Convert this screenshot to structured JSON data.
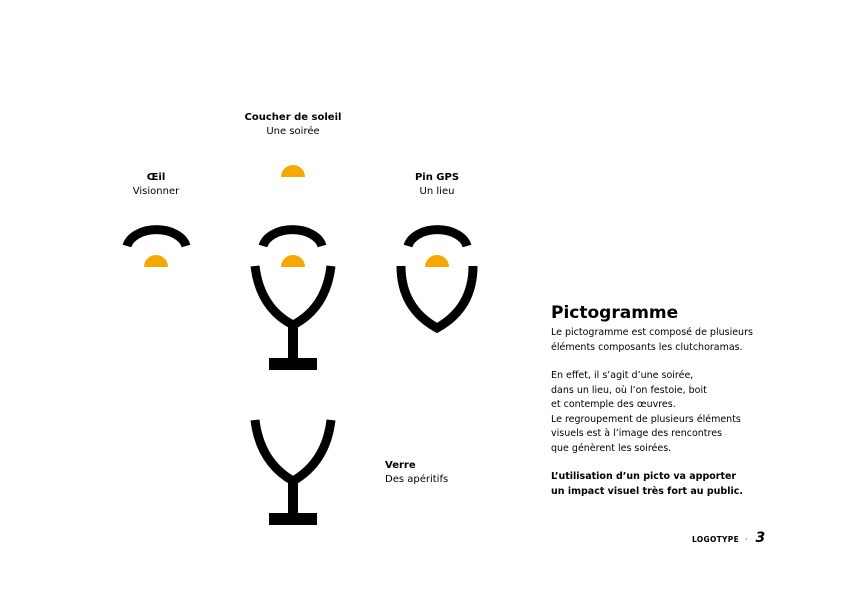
{
  "colors": {
    "accent": "#F5A800",
    "ink": "#000000"
  },
  "elements": {
    "sunset": {
      "title": "Coucher de soleil",
      "subtitle": "Une soirée",
      "icon": "sunset-icon"
    },
    "eye": {
      "title": "Œil",
      "subtitle": "Visionner",
      "icon": "eye-icon"
    },
    "pin": {
      "title": "Pin GPS",
      "subtitle": "Un lieu",
      "icon": "gps-pin-icon"
    },
    "glass": {
      "title": "Verre",
      "subtitle": "Des apéritifs",
      "icon": "glass-icon"
    }
  },
  "section": {
    "heading": "Pictogramme",
    "p1": "Le pictogramme est composé de plusieurs\néléments composants les clutchoramas.",
    "p2": "En effet, il s’agit d’une soirée,\ndans un lieu, où l’on festoie, boit\net contemple des œuvres.\nLe regroupement de plusieurs éléments\nvisuels est à l’image des rencontres\nque génèrent les soirées.",
    "p3": "L’utilisation d’un picto va apporter\nun impact visuel très fort au public."
  },
  "footer": {
    "label": "LOGOTYPE",
    "separator": "·",
    "page": "3"
  }
}
